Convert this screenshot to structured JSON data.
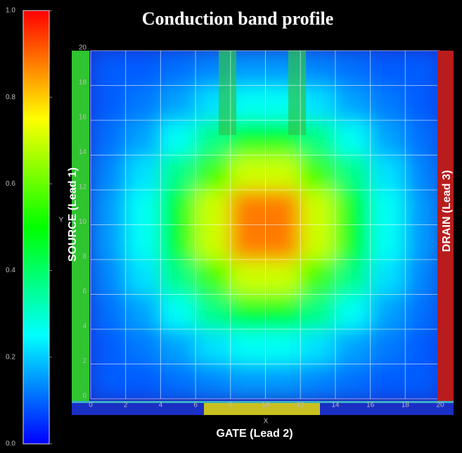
{
  "chart_data": {
    "type": "heatmap",
    "title": "Conduction band profile",
    "xlabel": "X",
    "ylabel": "Y",
    "xlim": [
      0,
      20
    ],
    "ylim": [
      0,
      20
    ],
    "xticks": [
      0,
      2,
      4,
      6,
      8,
      10,
      12,
      14,
      16,
      18,
      20
    ],
    "yticks": [
      0,
      2,
      4,
      6,
      8,
      10,
      12,
      14,
      16,
      18,
      20
    ],
    "grid": true,
    "colormap": [
      "#0000ff",
      "#00ffff",
      "#00ff00",
      "#ffff00",
      "#ff0000"
    ],
    "clim": [
      0,
      1
    ],
    "colorbar_ticks": [
      {
        "value": 0,
        "label": "0.0"
      },
      0.2,
      0.4,
      0.6,
      0.8,
      {
        "value": 1,
        "label": "1.0"
      }
    ],
    "z": [
      [
        0.09,
        0.09,
        0.11,
        0.13,
        0.15,
        0.15,
        0.13,
        0.11,
        0.09,
        0.09
      ],
      [
        0.09,
        0.12,
        0.16,
        0.22,
        0.26,
        0.26,
        0.22,
        0.16,
        0.12,
        0.09
      ],
      [
        0.11,
        0.16,
        0.26,
        0.37,
        0.46,
        0.46,
        0.37,
        0.26,
        0.16,
        0.11
      ],
      [
        0.13,
        0.22,
        0.37,
        0.56,
        0.7,
        0.7,
        0.56,
        0.37,
        0.22,
        0.13
      ],
      [
        0.15,
        0.26,
        0.46,
        0.7,
        0.88,
        0.88,
        0.7,
        0.46,
        0.26,
        0.15
      ],
      [
        0.15,
        0.26,
        0.46,
        0.7,
        0.88,
        0.88,
        0.7,
        0.46,
        0.26,
        0.15
      ],
      [
        0.13,
        0.22,
        0.37,
        0.56,
        0.7,
        0.7,
        0.56,
        0.37,
        0.22,
        0.13
      ],
      [
        0.11,
        0.16,
        0.26,
        0.37,
        0.46,
        0.46,
        0.37,
        0.26,
        0.16,
        0.11
      ],
      [
        0.09,
        0.12,
        0.16,
        0.22,
        0.26,
        0.26,
        0.22,
        0.16,
        0.12,
        0.09
      ],
      [
        0.09,
        0.09,
        0.11,
        0.13,
        0.15,
        0.15,
        0.13,
        0.11,
        0.09,
        0.09
      ]
    ],
    "annotations": [
      "SOURCE (Lead 1)",
      "DRAIN (Lead 3)",
      "GATE (Lead 2)"
    ]
  }
}
